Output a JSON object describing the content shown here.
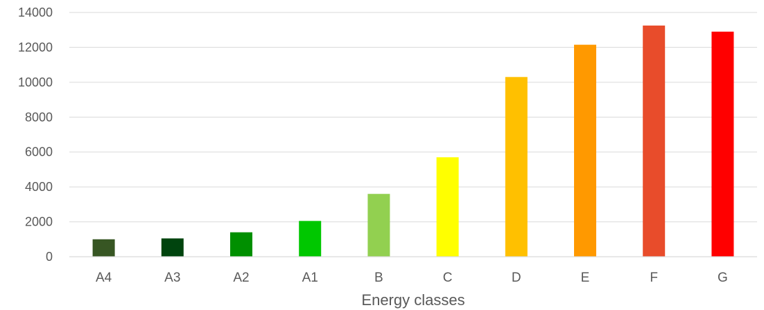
{
  "chart_data": {
    "type": "bar",
    "title": "",
    "xlabel": "Energy classes",
    "ylabel": "",
    "categories": [
      "A4",
      "A3",
      "A2",
      "A1",
      "B",
      "C",
      "D",
      "E",
      "F",
      "G"
    ],
    "values": [
      1000,
      1050,
      1400,
      2050,
      3600,
      5700,
      10300,
      12150,
      13250,
      12900
    ],
    "colors": [
      "#375623",
      "#00440e",
      "#008f00",
      "#00c700",
      "#92d050",
      "#ffff00",
      "#ffc000",
      "#ff9900",
      "#e84c2b",
      "#ff0000"
    ],
    "ylim": [
      0,
      14000
    ],
    "yticks": [
      0,
      2000,
      4000,
      6000,
      8000,
      10000,
      12000,
      14000
    ],
    "grid": true,
    "legend": "none"
  }
}
